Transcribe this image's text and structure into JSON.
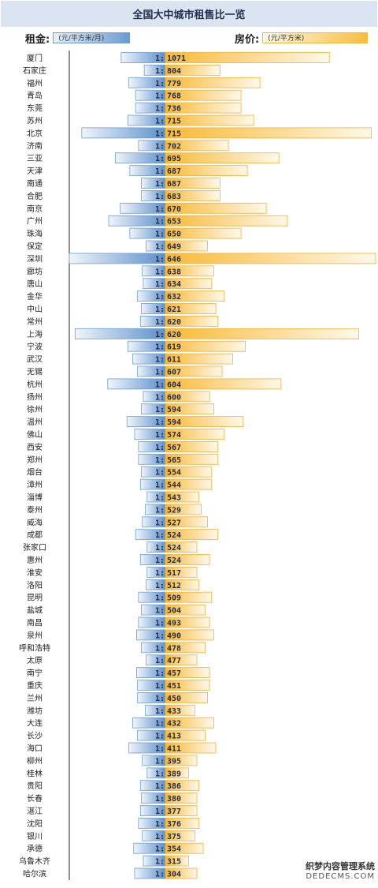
{
  "chart_data": {
    "type": "bar",
    "title": "全国大中城市租售比一览",
    "legend": {
      "rent_label": "租金:",
      "rent_unit": "(元/平方米/月)",
      "price_label": "房价:",
      "price_unit": "(元/平方米)"
    },
    "ratio_prefix": "1:",
    "categories": [
      "厦门",
      "石家庄",
      "福州",
      "青岛",
      "东莞",
      "苏州",
      "北京",
      "济南",
      "三亚",
      "天津",
      "南通",
      "合肥",
      "南京",
      "广州",
      "珠海",
      "保定",
      "深圳",
      "廊坊",
      "唐山",
      "金华",
      "中山",
      "常州",
      "上海",
      "宁波",
      "武汉",
      "无锡",
      "杭州",
      "扬州",
      "徐州",
      "温州",
      "佛山",
      "西安",
      "郑州",
      "烟台",
      "漳州",
      "淄博",
      "泰州",
      "威海",
      "成都",
      "张家口",
      "惠州",
      "淮安",
      "洛阳",
      "昆明",
      "盐城",
      "南昌",
      "泉州",
      "呼和浩特",
      "太原",
      "南宁",
      "重庆",
      "兰州",
      "潍坊",
      "大连",
      "长沙",
      "海口",
      "柳州",
      "桂林",
      "贵阳",
      "长春",
      "湛江",
      "沈阳",
      "银川",
      "承德",
      "乌鲁木齐",
      "哈尔滨"
    ],
    "ratios": [
      1071,
      804,
      779,
      768,
      736,
      715,
      715,
      702,
      695,
      687,
      687,
      683,
      670,
      653,
      650,
      649,
      646,
      638,
      634,
      632,
      621,
      620,
      620,
      619,
      611,
      607,
      604,
      600,
      594,
      594,
      574,
      567,
      565,
      554,
      544,
      543,
      529,
      527,
      524,
      524,
      524,
      517,
      512,
      509,
      504,
      493,
      490,
      478,
      477,
      457,
      451,
      450,
      433,
      432,
      413,
      411,
      395,
      389,
      386,
      380,
      377,
      376,
      375,
      354,
      315,
      304
    ],
    "rent_scale": [
      0.46,
      0.22,
      0.38,
      0.31,
      0.31,
      0.39,
      0.87,
      0.28,
      0.52,
      0.37,
      0.25,
      0.25,
      0.47,
      0.59,
      0.37,
      0.2,
      1.0,
      0.24,
      0.23,
      0.29,
      0.25,
      0.26,
      0.94,
      0.39,
      0.34,
      0.29,
      0.6,
      0.23,
      0.25,
      0.4,
      0.32,
      0.28,
      0.28,
      0.25,
      0.26,
      0.19,
      0.21,
      0.24,
      0.31,
      0.19,
      0.26,
      0.19,
      0.2,
      0.28,
      0.25,
      0.28,
      0.3,
      0.25,
      0.2,
      0.3,
      0.29,
      0.29,
      0.21,
      0.34,
      0.29,
      0.38,
      0.24,
      0.19,
      0.26,
      0.25,
      0.26,
      0.28,
      0.24,
      0.33,
      0.23,
      0.32
    ],
    "price_scale": [
      0.78,
      0.26,
      0.45,
      0.36,
      0.36,
      0.42,
      0.98,
      0.3,
      0.54,
      0.39,
      0.26,
      0.26,
      0.48,
      0.58,
      0.36,
      0.2,
      1.0,
      0.23,
      0.22,
      0.28,
      0.24,
      0.25,
      0.92,
      0.38,
      0.32,
      0.27,
      0.55,
      0.21,
      0.23,
      0.37,
      0.28,
      0.25,
      0.25,
      0.22,
      0.22,
      0.16,
      0.17,
      0.2,
      0.25,
      0.15,
      0.21,
      0.15,
      0.16,
      0.22,
      0.19,
      0.21,
      0.23,
      0.19,
      0.15,
      0.21,
      0.21,
      0.2,
      0.14,
      0.23,
      0.19,
      0.24,
      0.15,
      0.11,
      0.16,
      0.15,
      0.15,
      0.16,
      0.14,
      0.18,
      0.11,
      0.15
    ]
  },
  "credit": {
    "line1": "织梦内容管理系统",
    "line2": "DEDECMS.COM"
  }
}
